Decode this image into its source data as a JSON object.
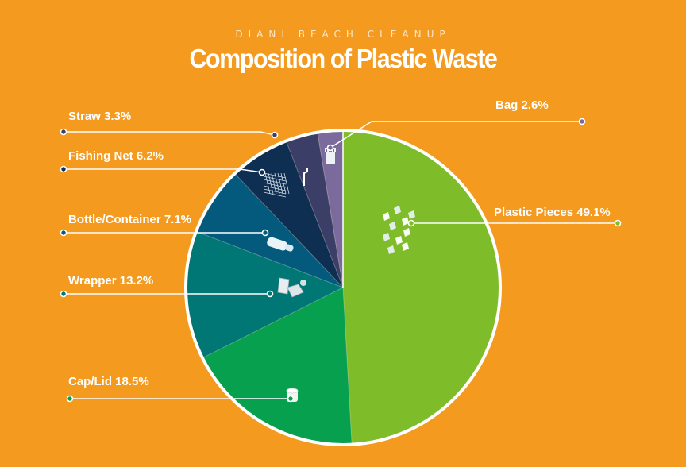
{
  "header": {
    "subtitle": "DIANI BEACH CLEANUP",
    "title": "Composition of Plastic Waste"
  },
  "colors": {
    "background": "#F39A1F",
    "label_text": "#ffffff",
    "slice_outline": "#ffffff"
  },
  "chart_data": {
    "type": "pie",
    "title": "Composition of Plastic Waste",
    "subtitle": "DIANI BEACH CLEANUP",
    "start": "12 o'clock",
    "direction": "clockwise",
    "slices": [
      {
        "name": "Plastic Pieces",
        "label": "Plastic Pieces 49.1%",
        "value": 49.1,
        "color": "#7FBC2A",
        "icon": "plastic-fragments-icon"
      },
      {
        "name": "Cap/Lid",
        "label": "Cap/Lid 18.5%",
        "value": 18.5,
        "color": "#06A04E",
        "icon": "bottle-cap-icon"
      },
      {
        "name": "Wrapper",
        "label": "Wrapper 13.2%",
        "value": 13.2,
        "color": "#007774",
        "icon": "wrapper-icon"
      },
      {
        "name": "Bottle/Container",
        "label": "Bottle/Container 7.1%",
        "value": 7.1,
        "color": "#045A7C",
        "icon": "bottle-icon"
      },
      {
        "name": "Fishing Net",
        "label": "Fishing Net 6.2%",
        "value": 6.2,
        "color": "#0E2E52",
        "icon": "fishing-net-icon"
      },
      {
        "name": "Straw",
        "label": "Straw   3.3%",
        "value": 3.3,
        "color": "#3B3F68",
        "icon": "straw-icon"
      },
      {
        "name": "Bag",
        "label": "Bag 2.6%",
        "value": 2.6,
        "color": "#7A6B9C",
        "icon": "plastic-bag-icon"
      }
    ]
  }
}
